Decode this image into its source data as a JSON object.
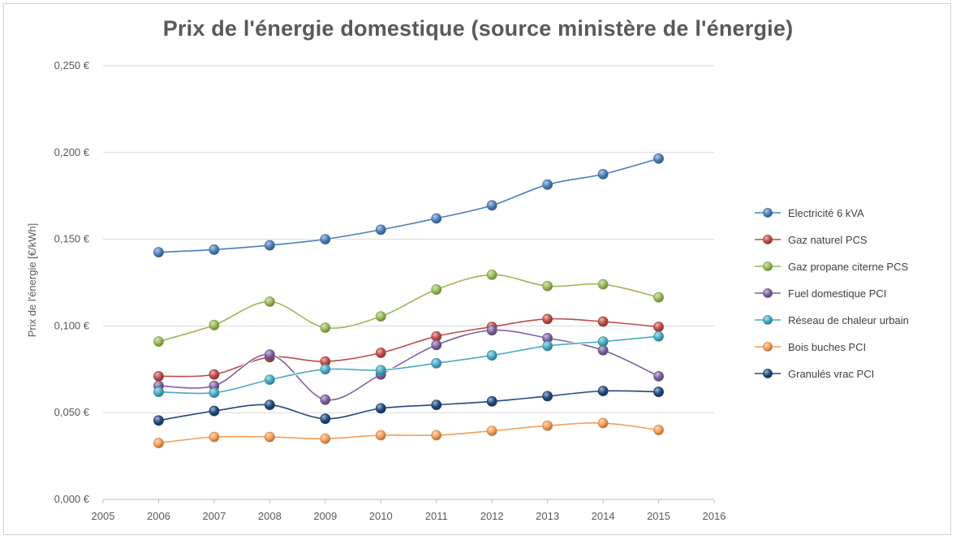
{
  "chart_data": {
    "type": "line",
    "title": "Prix de l'énergie domestique (source ministère de l'énergie)",
    "xlabel": "",
    "ylabel": "Prix de l'énergie [€/kWh]",
    "xlim": [
      2005,
      2016
    ],
    "ylim": [
      0,
      0.25
    ],
    "x_ticks": [
      "2005",
      "2006",
      "2007",
      "2008",
      "2009",
      "2010",
      "2011",
      "2012",
      "2013",
      "2014",
      "2015",
      "2016"
    ],
    "y_ticks": [
      {
        "value": 0,
        "label": "0,000 €"
      },
      {
        "value": 0.05,
        "label": "0,050 €"
      },
      {
        "value": 0.1,
        "label": "0,100 €"
      },
      {
        "value": 0.15,
        "label": "0,150 €"
      },
      {
        "value": 0.2,
        "label": "0,200 €"
      },
      {
        "value": 0.25,
        "label": "0,250 €"
      }
    ],
    "grid": "horizontal",
    "legend_position": "right",
    "x": [
      2006,
      2007,
      2008,
      2009,
      2010,
      2011,
      2012,
      2013,
      2014,
      2015
    ],
    "series": [
      {
        "name": "Electricité 6 kVA",
        "color": "#4a7ebb",
        "values": [
          0.1425,
          0.144,
          0.1465,
          0.15,
          0.1555,
          0.162,
          0.1695,
          0.1815,
          0.1875,
          0.1965
        ]
      },
      {
        "name": "Gaz naturel PCS",
        "color": "#be4b48",
        "values": [
          0.071,
          0.072,
          0.082,
          0.0795,
          0.0845,
          0.094,
          0.0995,
          0.104,
          0.1025,
          0.0995
        ]
      },
      {
        "name": "Gaz propane citerne PCS",
        "color": "#98b954",
        "values": [
          0.091,
          0.1005,
          0.114,
          0.099,
          0.1055,
          0.121,
          0.1295,
          0.123,
          0.124,
          0.1165
        ]
      },
      {
        "name": "Fuel domestique PCI",
        "color": "#7d60a0",
        "values": [
          0.0655,
          0.0655,
          0.0835,
          0.0575,
          0.072,
          0.089,
          0.0975,
          0.093,
          0.086,
          0.071
        ]
      },
      {
        "name": "Réseau de chaleur urbain",
        "color": "#46aac5",
        "values": [
          0.062,
          0.0615,
          0.069,
          0.075,
          0.0745,
          0.0785,
          0.083,
          0.0885,
          0.091,
          0.094
        ]
      },
      {
        "name": "Bois buches PCI",
        "color": "#f59d56",
        "values": [
          0.0325,
          0.036,
          0.036,
          0.035,
          0.037,
          0.037,
          0.0395,
          0.0425,
          0.044,
          0.04
        ]
      },
      {
        "name": "Granulés vrac PCI",
        "color": "#1f497d",
        "values": [
          0.0455,
          0.051,
          0.0545,
          0.0465,
          0.0525,
          0.0545,
          0.0565,
          0.0595,
          0.0625,
          0.062
        ]
      }
    ]
  }
}
